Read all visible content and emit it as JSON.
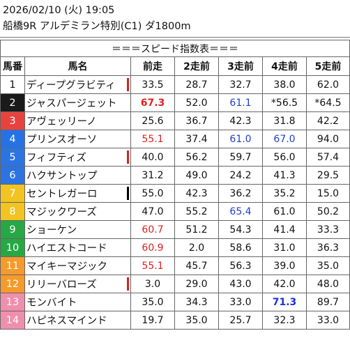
{
  "race": {
    "date_line": "2026/02/10 (火) 19:05",
    "title_line": "船橋9R アルデミラン特別(C1) ダ1800m"
  },
  "table": {
    "banner": "＝＝＝スピード指数表＝＝＝",
    "headers": {
      "num": "馬番",
      "name": "馬名",
      "r1": "前走",
      "r2": "2走前",
      "r3": "3走前",
      "r4": "4走前",
      "r5": "5走前"
    },
    "rows": [
      {
        "num": "1",
        "name": "ディープグラビティ",
        "r1": "33.5",
        "r2": "28.7",
        "r3": "32.7",
        "r4": "38.0",
        "r5": "62.0"
      },
      {
        "num": "2",
        "name": "ジャスパージェット",
        "r1": "67.3",
        "r2": "52.0",
        "r3": "61.1",
        "r4": "*56.5",
        "r5": "*64.5"
      },
      {
        "num": "3",
        "name": "アヴェッリーノ",
        "r1": "25.6",
        "r2": "36.7",
        "r3": "42.3",
        "r4": "31.8",
        "r5": "42.2"
      },
      {
        "num": "4",
        "name": "プリンスオーソ",
        "r1": "55.1",
        "r2": "37.4",
        "r3": "61.0",
        "r4": "67.0",
        "r5": "94.0"
      },
      {
        "num": "5",
        "name": "フィフティズ",
        "r1": "40.0",
        "r2": "56.2",
        "r3": "59.7",
        "r4": "56.0",
        "r5": "57.4"
      },
      {
        "num": "6",
        "name": "ハクサントップ",
        "r1": "31.2",
        "r2": "49.0",
        "r3": "24.2",
        "r4": "41.3",
        "r5": "29.5"
      },
      {
        "num": "7",
        "name": "セントレガーロ",
        "r1": "55.0",
        "r2": "42.3",
        "r3": "36.2",
        "r4": "35.2",
        "r5": "15.0"
      },
      {
        "num": "8",
        "name": "マジックワーズ",
        "r1": "47.0",
        "r2": "55.2",
        "r3": "65.4",
        "r4": "61.0",
        "r5": "50.2"
      },
      {
        "num": "9",
        "name": "ショーケン",
        "r1": "60.7",
        "r2": "51.2",
        "r3": "54.3",
        "r4": "41.4",
        "r5": "33.3"
      },
      {
        "num": "10",
        "name": "ハイエストコード",
        "r1": "60.9",
        "r2": "2.0",
        "r3": "58.6",
        "r4": "31.0",
        "r5": "36.3"
      },
      {
        "num": "11",
        "name": "マイキーマジック",
        "r1": "55.1",
        "r2": "45.7",
        "r3": "56.3",
        "r4": "39.0",
        "r5": "35.0"
      },
      {
        "num": "12",
        "name": "リリーバローズ",
        "r1": "3.0",
        "r2": "29.0",
        "r3": "43.0",
        "r4": "42.0",
        "r5": "48.0"
      },
      {
        "num": "13",
        "name": "モンバイト",
        "r1": "35.0",
        "r2": "34.3",
        "r3": "33.0",
        "r4": "71.3",
        "r5": "89.7"
      },
      {
        "num": "14",
        "name": "ハピネスマインド",
        "r1": "19.7",
        "r2": "35.0",
        "r3": "25.7",
        "r4": "32.3",
        "r5": "33.0"
      }
    ]
  },
  "colors": {
    "gate_bg": [
      "#ffffff",
      "#222222",
      "#e64040",
      "#1e6fe0",
      "#1ea6d8",
      "#1aa0d0",
      "#f2c31b",
      "#f2c31b",
      "#22a83a",
      "#22a83a",
      "#f5962a",
      "#f5962a",
      "#f08aa8",
      "#f08aa8"
    ],
    "gate_fg": [
      "#111111",
      "#ffffff",
      "#ffffff",
      "#ffffff",
      "#ffffff",
      "#ffffff",
      "#ffffff",
      "#ffffff",
      "#ffffff",
      "#ffffff",
      "#ffffff",
      "#ffffff",
      "#ffffff",
      "#ffffff"
    ],
    "gate_bg_exact": [
      "#ffffff",
      "#1a1a1a",
      "#e8423f",
      "#2572e6",
      "#2b74e2",
      "#2b74e2",
      "#f2c421",
      "#f2c421",
      "#27a844",
      "#27a844",
      "#f59a2c",
      "#f59a2c",
      "#ef8fad",
      "#ef8fad"
    ],
    "marker_red": "#d92020",
    "marker_black": "#000000",
    "value_red": "#e0201f",
    "value_blue": "#1f3fd0"
  },
  "markers": [
    {
      "row": 0,
      "color": "red"
    },
    {
      "row": 4,
      "color": "red"
    },
    {
      "row": 6,
      "color": "black"
    },
    {
      "row": 11,
      "color": "red"
    }
  ],
  "styles": [
    {
      "row": 1,
      "col": "r1",
      "style": "red-bold"
    },
    {
      "row": 1,
      "col": "r3",
      "style": "blue"
    },
    {
      "row": 3,
      "col": "r1",
      "style": "red"
    },
    {
      "row": 3,
      "col": "r3",
      "style": "blue"
    },
    {
      "row": 3,
      "col": "r4",
      "style": "blue"
    },
    {
      "row": 7,
      "col": "r3",
      "style": "blue"
    },
    {
      "row": 8,
      "col": "r1",
      "style": "red"
    },
    {
      "row": 9,
      "col": "r1",
      "style": "red"
    },
    {
      "row": 10,
      "col": "r1",
      "style": "red"
    },
    {
      "row": 12,
      "col": "r4",
      "style": "blue-bold"
    }
  ]
}
